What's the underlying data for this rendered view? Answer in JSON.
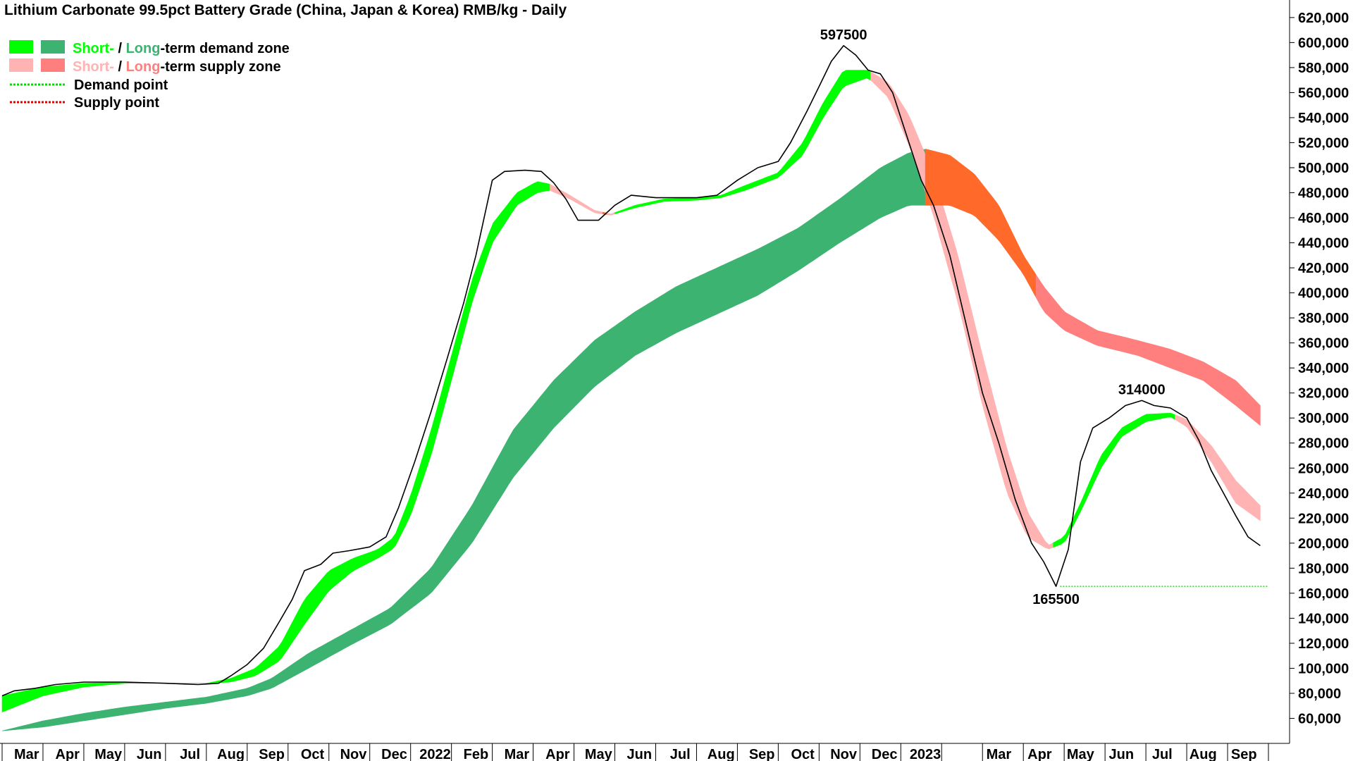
{
  "chart_data": {
    "type": "line",
    "title": "Lithium Carbonate 99.5pct Battery Grade (China, Japan & Korea) RMB/kg - Daily",
    "ylim": [
      40000,
      625000
    ],
    "y_ticks": [
      60000,
      80000,
      100000,
      120000,
      140000,
      160000,
      180000,
      200000,
      220000,
      240000,
      260000,
      280000,
      300000,
      320000,
      340000,
      360000,
      380000,
      400000,
      420000,
      440000,
      460000,
      480000,
      500000,
      520000,
      540000,
      560000,
      580000,
      600000,
      620000
    ],
    "y_tick_labels": [
      "60,000",
      "80,000",
      "100,000",
      "120,000",
      "140,000",
      "160,000",
      "180,000",
      "200,000",
      "220,000",
      "240,000",
      "260,000",
      "280,000",
      "300,000",
      "320,000",
      "340,000",
      "360,000",
      "380,000",
      "400,000",
      "420,000",
      "440,000",
      "460,000",
      "480,000",
      "500,000",
      "520,000",
      "540,000",
      "560,000",
      "580,000",
      "600,000",
      "620,000"
    ],
    "x_tick_labels": [
      {
        "label": "Mar",
        "t": 0.6
      },
      {
        "label": "Apr",
        "t": 1.6
      },
      {
        "label": "May",
        "t": 2.6
      },
      {
        "label": "Jun",
        "t": 3.6
      },
      {
        "label": "Jul",
        "t": 4.6
      },
      {
        "label": "Aug",
        "t": 5.6
      },
      {
        "label": "Sep",
        "t": 6.6
      },
      {
        "label": "Oct",
        "t": 7.6
      },
      {
        "label": "Nov",
        "t": 8.6
      },
      {
        "label": "Dec",
        "t": 9.6
      },
      {
        "label": "2022",
        "t": 10.6
      },
      {
        "label": "Feb",
        "t": 11.6
      },
      {
        "label": "Mar",
        "t": 12.6
      },
      {
        "label": "Apr",
        "t": 13.6
      },
      {
        "label": "May",
        "t": 14.6
      },
      {
        "label": "Jun",
        "t": 15.6
      },
      {
        "label": "Jul",
        "t": 16.6
      },
      {
        "label": "Aug",
        "t": 17.6
      },
      {
        "label": "Sep",
        "t": 18.6
      },
      {
        "label": "Oct",
        "t": 19.6
      },
      {
        "label": "Nov",
        "t": 20.6
      },
      {
        "label": "Dec",
        "t": 21.6
      },
      {
        "label": "2023",
        "t": 22.6
      },
      {
        "label": "Mar",
        "t": 24.4
      },
      {
        "label": "Apr",
        "t": 25.4
      },
      {
        "label": "May",
        "t": 26.4
      },
      {
        "label": "Jun",
        "t": 27.4
      },
      {
        "label": "Jul",
        "t": 28.4
      },
      {
        "label": "Aug",
        "t": 29.4
      },
      {
        "label": "Sep",
        "t": 30.4
      }
    ],
    "x_range": [
      0,
      31
    ],
    "price": {
      "name": "Price",
      "color": "#000000",
      "points": [
        [
          0,
          78000
        ],
        [
          0.3,
          82000
        ],
        [
          0.8,
          84000
        ],
        [
          1.3,
          87000
        ],
        [
          2,
          89000
        ],
        [
          3,
          89000
        ],
        [
          4,
          88000
        ],
        [
          4.8,
          87000
        ],
        [
          5.3,
          88000
        ],
        [
          5.6,
          94000
        ],
        [
          6,
          103000
        ],
        [
          6.4,
          116000
        ],
        [
          6.8,
          138000
        ],
        [
          7.1,
          155000
        ],
        [
          7.4,
          178000
        ],
        [
          7.8,
          183000
        ],
        [
          8.1,
          192000
        ],
        [
          8.5,
          194000
        ],
        [
          9,
          197000
        ],
        [
          9.4,
          205000
        ],
        [
          9.7,
          228000
        ],
        [
          10.1,
          265000
        ],
        [
          10.5,
          305000
        ],
        [
          10.9,
          348000
        ],
        [
          11.3,
          392000
        ],
        [
          11.6,
          430000
        ],
        [
          12,
          490000
        ],
        [
          12.3,
          497000
        ],
        [
          12.8,
          498000
        ],
        [
          13.2,
          497000
        ],
        [
          13.5,
          488000
        ],
        [
          13.8,
          475000
        ],
        [
          14.1,
          458000
        ],
        [
          14.6,
          458000
        ],
        [
          15,
          470000
        ],
        [
          15.4,
          478000
        ],
        [
          16,
          476000
        ],
        [
          17,
          476000
        ],
        [
          17.5,
          478000
        ],
        [
          18,
          490000
        ],
        [
          18.5,
          500000
        ],
        [
          19,
          505000
        ],
        [
          19.3,
          520000
        ],
        [
          19.7,
          545000
        ],
        [
          20,
          565000
        ],
        [
          20.3,
          585000
        ],
        [
          20.6,
          597500
        ],
        [
          20.9,
          590000
        ],
        [
          21.2,
          578000
        ],
        [
          21.5,
          575000
        ],
        [
          21.8,
          560000
        ],
        [
          22.2,
          520000
        ],
        [
          22.5,
          490000
        ],
        [
          22.8,
          470000
        ],
        [
          23.2,
          430000
        ],
        [
          23.6,
          375000
        ],
        [
          24,
          320000
        ],
        [
          24.4,
          280000
        ],
        [
          24.8,
          235000
        ],
        [
          25.2,
          200000
        ],
        [
          25.5,
          185000
        ],
        [
          25.8,
          165500
        ],
        [
          26.1,
          195000
        ],
        [
          26.4,
          265000
        ],
        [
          26.7,
          292000
        ],
        [
          27.1,
          300000
        ],
        [
          27.5,
          310000
        ],
        [
          27.9,
          314000
        ],
        [
          28.2,
          310000
        ],
        [
          28.6,
          308000
        ],
        [
          29,
          300000
        ],
        [
          29.3,
          282000
        ],
        [
          29.6,
          258000
        ],
        [
          29.9,
          240000
        ],
        [
          30.2,
          222000
        ],
        [
          30.5,
          205000
        ],
        [
          30.8,
          198000
        ]
      ]
    },
    "short_term_zone": {
      "name": "Short-term zone",
      "upper": [
        [
          0,
          78000
        ],
        [
          1,
          85000
        ],
        [
          2,
          88000
        ],
        [
          3,
          89000
        ],
        [
          4,
          88000
        ],
        [
          5,
          88000
        ],
        [
          5.6,
          92000
        ],
        [
          6.2,
          100000
        ],
        [
          6.8,
          118000
        ],
        [
          7.4,
          155000
        ],
        [
          8,
          178000
        ],
        [
          8.6,
          188000
        ],
        [
          9.2,
          195000
        ],
        [
          9.6,
          205000
        ],
        [
          10,
          238000
        ],
        [
          10.5,
          290000
        ],
        [
          11,
          350000
        ],
        [
          11.5,
          410000
        ],
        [
          12,
          455000
        ],
        [
          12.6,
          480000
        ],
        [
          13.1,
          489000
        ],
        [
          13.4,
          487000
        ],
        [
          13.9,
          478000
        ],
        [
          14.5,
          466000
        ],
        [
          14.9,
          463000
        ],
        [
          15.5,
          470000
        ],
        [
          16.2,
          475000
        ],
        [
          17,
          476000
        ],
        [
          17.6,
          478000
        ],
        [
          18.2,
          486000
        ],
        [
          19,
          496000
        ],
        [
          19.6,
          520000
        ],
        [
          20.1,
          552000
        ],
        [
          20.6,
          578000
        ],
        [
          21.2,
          578000
        ],
        [
          21.7,
          568000
        ],
        [
          22.2,
          542000
        ],
        [
          22.8,
          495000
        ],
        [
          23.4,
          430000
        ],
        [
          24,
          350000
        ],
        [
          24.6,
          275000
        ],
        [
          25.1,
          225000
        ],
        [
          25.6,
          198000
        ],
        [
          26,
          205000
        ],
        [
          26.4,
          232000
        ],
        [
          26.9,
          270000
        ],
        [
          27.4,
          292000
        ],
        [
          28,
          303000
        ],
        [
          28.6,
          304000
        ],
        [
          29,
          299000
        ],
        [
          29.6,
          278000
        ],
        [
          30.2,
          250000
        ],
        [
          30.8,
          230000
        ]
      ],
      "lower": [
        [
          0,
          65000
        ],
        [
          1,
          78000
        ],
        [
          2,
          85000
        ],
        [
          3,
          88000
        ],
        [
          4,
          88000
        ],
        [
          5,
          88000
        ],
        [
          5.6,
          89000
        ],
        [
          6.2,
          94000
        ],
        [
          6.8,
          106000
        ],
        [
          7.4,
          135000
        ],
        [
          8,
          162000
        ],
        [
          8.6,
          178000
        ],
        [
          9.2,
          188000
        ],
        [
          9.6,
          196000
        ],
        [
          10,
          222000
        ],
        [
          10.5,
          270000
        ],
        [
          11,
          330000
        ],
        [
          11.5,
          392000
        ],
        [
          12,
          440000
        ],
        [
          12.6,
          470000
        ],
        [
          13.1,
          480000
        ],
        [
          13.4,
          482000
        ],
        [
          13.9,
          475000
        ],
        [
          14.5,
          464000
        ],
        [
          14.9,
          462000
        ],
        [
          15.5,
          468000
        ],
        [
          16.2,
          473000
        ],
        [
          17,
          474000
        ],
        [
          17.6,
          476000
        ],
        [
          18.2,
          482000
        ],
        [
          19,
          492000
        ],
        [
          19.6,
          510000
        ],
        [
          20.1,
          540000
        ],
        [
          20.6,
          565000
        ],
        [
          21.2,
          572000
        ],
        [
          21.7,
          556000
        ],
        [
          22.2,
          518000
        ],
        [
          22.8,
          462000
        ],
        [
          23.4,
          392000
        ],
        [
          24,
          310000
        ],
        [
          24.6,
          240000
        ],
        [
          25.1,
          205000
        ],
        [
          25.6,
          195000
        ],
        [
          26,
          200000
        ],
        [
          26.4,
          225000
        ],
        [
          26.9,
          260000
        ],
        [
          27.4,
          285000
        ],
        [
          28,
          297000
        ],
        [
          28.6,
          301000
        ],
        [
          29,
          293000
        ],
        [
          29.6,
          265000
        ],
        [
          30.2,
          232000
        ],
        [
          30.8,
          218000
        ]
      ]
    },
    "long_term_zone": {
      "name": "Long-term zone",
      "upper": [
        [
          0,
          50000
        ],
        [
          1,
          58000
        ],
        [
          2,
          64000
        ],
        [
          3,
          69000
        ],
        [
          4,
          73000
        ],
        [
          5,
          77000
        ],
        [
          6,
          84000
        ],
        [
          6.6,
          92000
        ],
        [
          7.5,
          112000
        ],
        [
          8.5,
          130000
        ],
        [
          9.5,
          148000
        ],
        [
          10.5,
          180000
        ],
        [
          11.5,
          230000
        ],
        [
          12.5,
          290000
        ],
        [
          13.5,
          330000
        ],
        [
          14.5,
          362000
        ],
        [
          15.5,
          385000
        ],
        [
          16.5,
          405000
        ],
        [
          17.5,
          420000
        ],
        [
          18.5,
          435000
        ],
        [
          19.5,
          452000
        ],
        [
          20.5,
          475000
        ],
        [
          21.5,
          500000
        ],
        [
          22.2,
          512000
        ],
        [
          22.6,
          515000
        ],
        [
          23.2,
          510000
        ],
        [
          23.8,
          495000
        ],
        [
          24.4,
          470000
        ],
        [
          25,
          430000
        ],
        [
          25.5,
          405000
        ],
        [
          26,
          385000
        ],
        [
          26.8,
          370000
        ],
        [
          27.8,
          362000
        ],
        [
          28.6,
          355000
        ],
        [
          29.4,
          345000
        ],
        [
          30.2,
          330000
        ],
        [
          30.8,
          310000
        ]
      ],
      "lower": [
        [
          0,
          50000
        ],
        [
          1,
          53000
        ],
        [
          2,
          58000
        ],
        [
          3,
          63000
        ],
        [
          4,
          68000
        ],
        [
          5,
          72000
        ],
        [
          6,
          78000
        ],
        [
          6.6,
          84000
        ],
        [
          7.5,
          100000
        ],
        [
          8.5,
          118000
        ],
        [
          9.5,
          135000
        ],
        [
          10.5,
          160000
        ],
        [
          11.5,
          200000
        ],
        [
          12.5,
          252000
        ],
        [
          13.5,
          292000
        ],
        [
          14.5,
          325000
        ],
        [
          15.5,
          350000
        ],
        [
          16.5,
          368000
        ],
        [
          17.5,
          383000
        ],
        [
          18.5,
          398000
        ],
        [
          19.5,
          418000
        ],
        [
          20.5,
          440000
        ],
        [
          21.5,
          460000
        ],
        [
          22.2,
          470000
        ],
        [
          22.6,
          470000
        ],
        [
          23.2,
          470000
        ],
        [
          23.8,
          462000
        ],
        [
          24.4,
          442000
        ],
        [
          25,
          415000
        ],
        [
          25.5,
          385000
        ],
        [
          26,
          370000
        ],
        [
          26.8,
          358000
        ],
        [
          27.8,
          350000
        ],
        [
          28.6,
          340000
        ],
        [
          29.4,
          330000
        ],
        [
          30.2,
          310000
        ],
        [
          30.8,
          294000
        ]
      ]
    },
    "demand_point": {
      "value": 165500,
      "from_t": 25.9,
      "to_t": 31,
      "color": "#00cc00"
    },
    "annotations": [
      {
        "text": "597500",
        "t": 20.6,
        "value": 597500,
        "position": "above"
      },
      {
        "text": "314000",
        "t": 27.9,
        "value": 314000,
        "position": "above"
      },
      {
        "text": "165500",
        "t": 25.8,
        "value": 165500,
        "position": "below"
      }
    ],
    "colors": {
      "short_demand": "#00ff00",
      "long_demand": "#3cb371",
      "short_supply": "#ffb3b3",
      "long_supply": "#ff7f7f",
      "transition": "#ff6a2b"
    },
    "legend": {
      "placement": "top-left",
      "rows": [
        {
          "parts": [
            {
              "text": "Short-",
              "color": "#00ff00"
            },
            {
              "text": " / ",
              "color": "#000000"
            },
            {
              "text": "Long",
              "color": "#3cb371"
            },
            {
              "text": "-term demand zone",
              "color": "#000000"
            }
          ],
          "swatches": [
            "#00ff00",
            "#3cb371"
          ]
        },
        {
          "parts": [
            {
              "text": "Short-",
              "color": "#ffb3b3"
            },
            {
              "text": " / ",
              "color": "#000000"
            },
            {
              "text": "Long",
              "color": "#ff7f7f"
            },
            {
              "text": "-term supply zone",
              "color": "#000000"
            }
          ],
          "swatches": [
            "#ffb3b3",
            "#ff7f7f"
          ]
        },
        {
          "parts": [
            {
              "text": "Demand point",
              "color": "#000000"
            }
          ],
          "dotted": "#00dd00"
        },
        {
          "parts": [
            {
              "text": "Supply point",
              "color": "#000000"
            }
          ],
          "dotted": "#dd0000"
        }
      ]
    },
    "grid": false
  }
}
